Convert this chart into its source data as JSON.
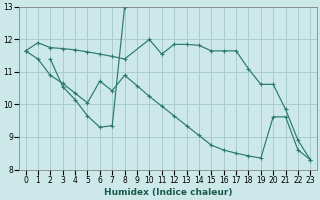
{
  "xlabel": "Humidex (Indice chaleur)",
  "bg_color": "#cce8e8",
  "grid_color": "#aacccc",
  "line_color": "#2a7a6a",
  "xlim": [
    -0.5,
    23.5
  ],
  "ylim": [
    8,
    13
  ],
  "xticks": [
    0,
    1,
    2,
    3,
    4,
    5,
    6,
    7,
    8,
    9,
    10,
    11,
    12,
    13,
    14,
    15,
    16,
    17,
    18,
    19,
    20,
    21,
    22,
    23
  ],
  "yticks": [
    8,
    9,
    10,
    11,
    12,
    13
  ],
  "line1_x": [
    0,
    1,
    2,
    3,
    4,
    5,
    6,
    7,
    8,
    10,
    11,
    12,
    13,
    14,
    15,
    16,
    17,
    18,
    19,
    20,
    21,
    22,
    23
  ],
  "line1_y": [
    11.65,
    11.9,
    11.75,
    11.72,
    11.68,
    11.62,
    11.55,
    11.48,
    11.4,
    12.0,
    11.55,
    11.85,
    11.85,
    11.82,
    11.65,
    11.65,
    11.65,
    11.1,
    10.62,
    10.62,
    9.85,
    8.9,
    8.3
  ],
  "line2_x": [
    2,
    3,
    4,
    5,
    6,
    7,
    8
  ],
  "line2_y": [
    11.4,
    10.55,
    10.15,
    9.65,
    9.3,
    9.35,
    13.0
  ],
  "line3_x": [
    0,
    1,
    2,
    3,
    4,
    5,
    6,
    7,
    8,
    9,
    10,
    11,
    12,
    13,
    14,
    15,
    16,
    17,
    18,
    19,
    20,
    21,
    22,
    23
  ],
  "line3_y": [
    11.65,
    11.4,
    10.9,
    10.65,
    10.35,
    10.05,
    10.72,
    10.42,
    10.9,
    10.58,
    10.25,
    9.95,
    9.65,
    9.35,
    9.05,
    8.75,
    8.6,
    8.5,
    8.42,
    8.35,
    9.62,
    9.62,
    8.6,
    8.3
  ]
}
